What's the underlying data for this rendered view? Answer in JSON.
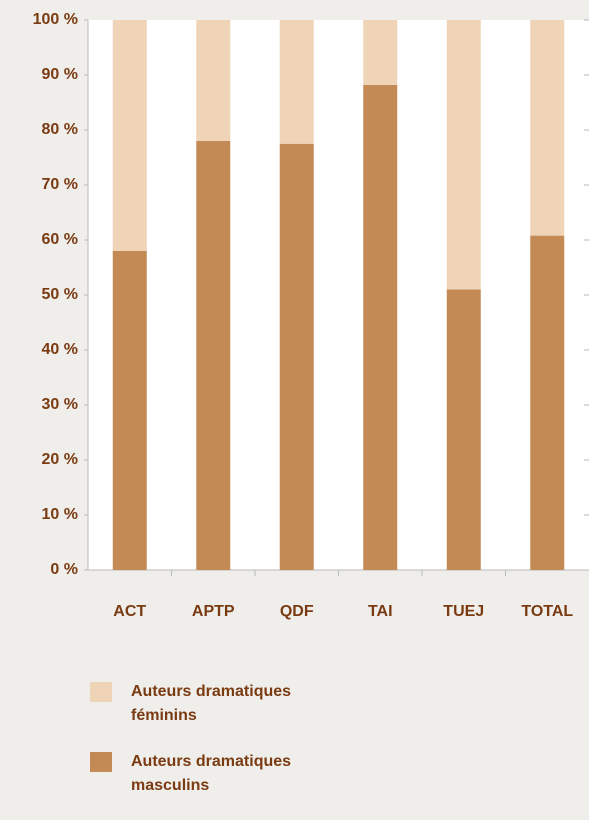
{
  "chart_data": {
    "type": "stacked_bar",
    "categories": [
      "ACT",
      "APTP",
      "QDF",
      "TAI",
      "TUEJ",
      "TOTAL"
    ],
    "series": [
      {
        "name": "Auteurs dramatiques masculins",
        "color": "#c48a55",
        "values": [
          58,
          78,
          77.5,
          88.2,
          51,
          60.8
        ]
      },
      {
        "name": "Auteurs dramatiques féminins",
        "color": "#f0d4b8",
        "values": [
          42,
          22,
          22.5,
          11.8,
          49,
          39.2
        ]
      }
    ],
    "ylim": [
      0,
      100
    ],
    "yticks": [
      {
        "value": 0,
        "label": "0 %"
      },
      {
        "value": 10,
        "label": "10 %"
      },
      {
        "value": 20,
        "label": "20 %"
      },
      {
        "value": 30,
        "label": "30 %"
      },
      {
        "value": 40,
        "label": "40 %"
      },
      {
        "value": 50,
        "label": "50 %"
      },
      {
        "value": 60,
        "label": "60 %"
      },
      {
        "value": 70,
        "label": "70 %"
      },
      {
        "value": 80,
        "label": "80 %"
      },
      {
        "value": 90,
        "label": "90 %"
      },
      {
        "value": 100,
        "label": "100 %"
      }
    ],
    "grid": false
  }
}
